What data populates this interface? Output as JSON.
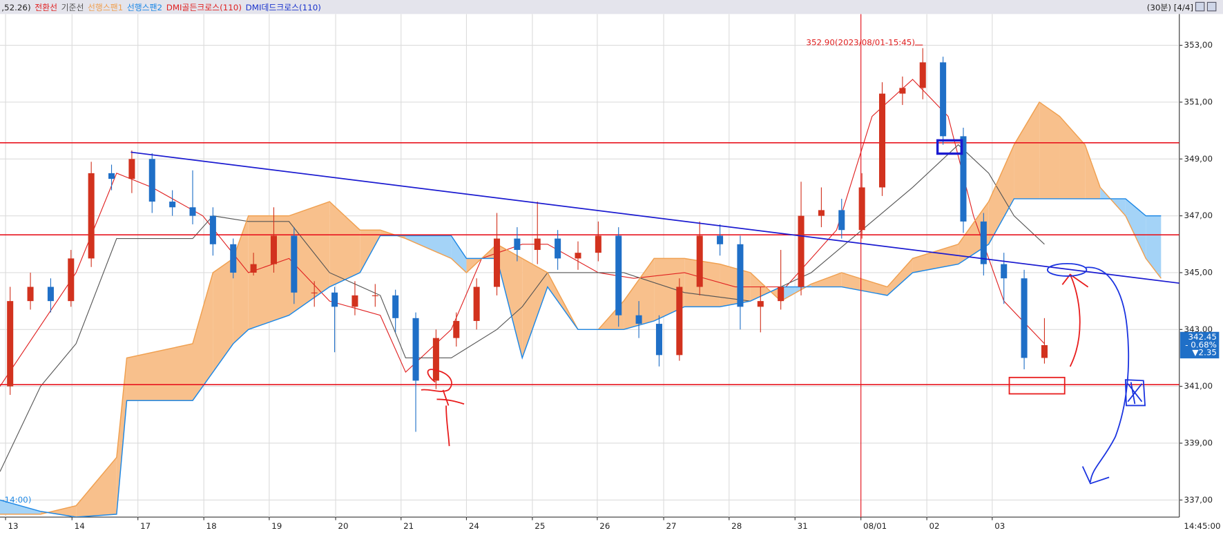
{
  "chart_data": {
    "type": "candlestick",
    "header_prefix": ",52.26)",
    "legend_extra": [
      {
        "text": "DMI골든크로스(110)",
        "color": "#e02020"
      },
      {
        "text": "DMI데드크로스(110)",
        "color": "#1a33cc"
      }
    ],
    "header_right": "(30분) [4/4]",
    "left_note": "-14:00)",
    "last_time": "14:45:00",
    "up_color": "#d2321e",
    "down_color": "#1f6fc7",
    "x": [
      2,
      6,
      10,
      14,
      18,
      22,
      26,
      30,
      34,
      38,
      42,
      46,
      50,
      54,
      58,
      62,
      66,
      70,
      74,
      78,
      82,
      86,
      90,
      94,
      98,
      102,
      106,
      110,
      114,
      118,
      122,
      126,
      130,
      134,
      138,
      142,
      146,
      150,
      154,
      158,
      162,
      166,
      170,
      174,
      178,
      182,
      186,
      190,
      194,
      198,
      202,
      206
    ],
    "open": [
      341.0,
      344.0,
      344.5,
      344.0,
      345.5,
      348.5,
      348.3,
      349.0,
      347.5,
      347.3,
      347.0,
      346.0,
      345.0,
      345.3,
      346.3,
      344.3,
      344.3,
      343.8,
      344.2,
      344.2,
      343.4,
      341.2,
      342.7,
      343.3,
      344.5,
      346.2,
      345.8,
      346.2,
      345.5,
      345.7,
      346.3,
      343.5,
      343.2,
      342.1,
      344.5,
      346.3,
      346.0,
      343.8,
      344.0,
      344.5,
      347.0,
      347.2,
      346.5,
      348.0,
      351.3,
      351.5,
      352.4,
      349.8,
      346.8,
      345.3,
      344.8,
      342.0
    ],
    "high": [
      344.5,
      345.0,
      344.8,
      345.8,
      348.9,
      348.8,
      349.3,
      349.2,
      347.9,
      348.6,
      347.3,
      346.2,
      345.7,
      347.3,
      346.6,
      344.7,
      344.5,
      344.7,
      344.6,
      344.4,
      343.6,
      343.0,
      343.6,
      344.8,
      347.1,
      346.6,
      347.5,
      346.5,
      346.1,
      346.8,
      346.6,
      344.0,
      343.5,
      344.8,
      346.8,
      346.7,
      346.3,
      344.5,
      345.8,
      348.2,
      348.0,
      347.6,
      348.5,
      351.7,
      351.9,
      352.9,
      352.6,
      350.1,
      347.1,
      345.7,
      345.1,
      343.4
    ],
    "low": [
      340.7,
      343.7,
      343.6,
      343.8,
      345.2,
      347.9,
      347.8,
      347.1,
      347.0,
      346.7,
      345.6,
      344.8,
      344.9,
      345.0,
      343.9,
      343.8,
      342.2,
      343.5,
      343.8,
      342.9,
      339.4,
      340.9,
      342.4,
      343.0,
      344.2,
      345.4,
      345.3,
      345.1,
      345.1,
      345.4,
      343.1,
      342.7,
      341.7,
      341.9,
      344.2,
      345.6,
      343.0,
      342.9,
      343.7,
      344.2,
      346.6,
      346.2,
      346.2,
      347.7,
      350.9,
      351.1,
      349.5,
      346.4,
      344.9,
      343.9,
      341.6,
      341.8
    ],
    "close": [
      344.0,
      344.5,
      344.0,
      345.5,
      348.5,
      348.3,
      349.0,
      347.5,
      347.3,
      347.0,
      346.0,
      345.0,
      345.3,
      346.3,
      344.3,
      344.3,
      343.8,
      344.2,
      344.2,
      343.4,
      341.2,
      342.7,
      343.3,
      344.5,
      346.2,
      345.8,
      346.2,
      345.5,
      345.7,
      346.3,
      343.5,
      343.2,
      342.1,
      344.5,
      346.3,
      346.0,
      343.8,
      344.0,
      344.5,
      347.0,
      347.2,
      346.5,
      348.0,
      351.3,
      351.5,
      352.4,
      349.8,
      346.8,
      345.3,
      344.8,
      342.0,
      342.45
    ],
    "series": [
      {
        "name": "전환선",
        "color": "#e02020",
        "x": [
          0,
          15,
          23,
          30,
          40,
          49,
          57,
          65,
          75,
          80,
          89,
          95,
          103,
          108,
          118,
          125,
          135,
          145,
          155,
          165,
          172,
          180,
          187,
          192,
          198,
          206
        ],
        "values": [
          341.0,
          345.0,
          348.5,
          348.0,
          347.0,
          345.0,
          345.5,
          344.0,
          343.5,
          341.5,
          343.0,
          345.5,
          346.0,
          346.0,
          345.0,
          344.8,
          345.0,
          344.5,
          344.5,
          346.5,
          350.5,
          351.8,
          350.5,
          347.0,
          344.0,
          342.5
        ]
      },
      {
        "name": "기준선",
        "color": "#555555",
        "x": [
          0,
          8,
          15,
          23,
          38,
          42,
          49,
          57,
          65,
          75,
          80,
          89,
          98,
          103,
          108,
          118,
          123,
          135,
          148,
          160,
          170,
          180,
          189,
          195,
          200,
          206
        ],
        "values": [
          338.0,
          341.0,
          342.5,
          346.2,
          346.2,
          347.0,
          346.8,
          346.8,
          345.0,
          344.2,
          342.0,
          342.0,
          343.0,
          343.8,
          345.0,
          345.0,
          345.0,
          344.3,
          344.0,
          345.0,
          346.5,
          348.0,
          349.5,
          348.5,
          347.0,
          346.0
        ]
      },
      {
        "name": "선행스팬1",
        "color": "#f0a050",
        "x": [
          0,
          8,
          15,
          23,
          25,
          38,
          42,
          46,
          49,
          57,
          65,
          71,
          75,
          80,
          89,
          92,
          98,
          103,
          108,
          114,
          118,
          123,
          129,
          135,
          142,
          148,
          154,
          160,
          166,
          175,
          180,
          189,
          195,
          200,
          205,
          209,
          214,
          217,
          222,
          226,
          229
        ],
        "values": [
          336.5,
          336.5,
          336.8,
          338.5,
          342.0,
          342.5,
          345.0,
          345.5,
          347.0,
          347.0,
          347.5,
          346.5,
          346.5,
          346.2,
          345.5,
          345.0,
          346.0,
          345.5,
          345.0,
          343.0,
          343.0,
          344.0,
          345.5,
          345.5,
          345.3,
          345.0,
          344.0,
          344.6,
          345.0,
          344.5,
          345.5,
          346.0,
          347.5,
          349.5,
          351.0,
          350.5,
          349.5,
          348.0,
          347.0,
          345.5,
          344.8
        ]
      },
      {
        "name": "선행스팬2",
        "color": "#1e88e5",
        "x": [
          0,
          8,
          15,
          23,
          25,
          38,
          42,
          46,
          49,
          57,
          65,
          71,
          75,
          80,
          89,
          92,
          98,
          103,
          108,
          114,
          118,
          123,
          129,
          135,
          142,
          148,
          154,
          160,
          166,
          175,
          180,
          189,
          195,
          200,
          205,
          209,
          214,
          217,
          222,
          226,
          229
        ],
        "values": [
          337.0,
          336.6,
          336.4,
          336.5,
          340.5,
          340.5,
          341.5,
          342.5,
          343.0,
          343.5,
          344.5,
          345.0,
          346.3,
          346.3,
          346.3,
          345.5,
          345.5,
          342.0,
          344.5,
          343.0,
          343.0,
          343.0,
          343.3,
          343.8,
          343.8,
          344.0,
          344.5,
          344.5,
          344.5,
          344.2,
          345.0,
          345.3,
          346.0,
          347.6,
          347.6,
          347.6,
          347.6,
          347.6,
          347.6,
          347.0,
          347.0
        ]
      }
    ],
    "cloud_up_color": "#f8c08c",
    "cloud_down_color": "#a4d3f7",
    "xlim": [
      0,
      232.6
    ],
    "ylim": [
      336.4,
      354.1
    ],
    "xticks": [
      {
        "value": 1.1,
        "label": "13"
      },
      {
        "value": 14.2,
        "label": "14"
      },
      {
        "value": 27.2,
        "label": "17"
      },
      {
        "value": 40.2,
        "label": "18"
      },
      {
        "value": 53.1,
        "label": "19"
      },
      {
        "value": 66.2,
        "label": "20"
      },
      {
        "value": 79.1,
        "label": "21"
      },
      {
        "value": 92.0,
        "label": "24"
      },
      {
        "value": 105.0,
        "label": "25"
      },
      {
        "value": 117.8,
        "label": "26"
      },
      {
        "value": 130.9,
        "label": "27"
      },
      {
        "value": 143.8,
        "label": "28"
      },
      {
        "value": 156.8,
        "label": "31"
      },
      {
        "value": 169.8,
        "label": "08/01"
      },
      {
        "value": 182.8,
        "label": "02"
      },
      {
        "value": 195.7,
        "label": "03"
      }
    ],
    "yticks": [
      {
        "value": 337,
        "label": "337,00"
      },
      {
        "value": 339,
        "label": "339,00"
      },
      {
        "value": 341,
        "label": "341,00"
      },
      {
        "value": 343,
        "label": "343,00"
      },
      {
        "value": 345,
        "label": "345,00"
      },
      {
        "value": 347,
        "label": "347,00"
      },
      {
        "value": 349,
        "label": "349,00"
      },
      {
        "value": 351,
        "label": "351,00"
      },
      {
        "value": 353,
        "label": "353,00"
      }
    ],
    "grid": true,
    "hlines": [
      349.57,
      346.33,
      341.06
    ],
    "hline_color": "#e8141e",
    "vline": 169.8,
    "trendline": {
      "x": [
        25.8,
        232.6
      ],
      "values": [
        349.24,
        344.63
      ],
      "color": "#1a1ad0"
    },
    "max_note": {
      "text": "352.90(2023/08/01-15:45)",
      "x": 182,
      "value": 352.9
    },
    "last_price": {
      "value": 342.45,
      "label": "342.45",
      "change": "- 0.68%",
      "diff": "▼2.35"
    }
  }
}
